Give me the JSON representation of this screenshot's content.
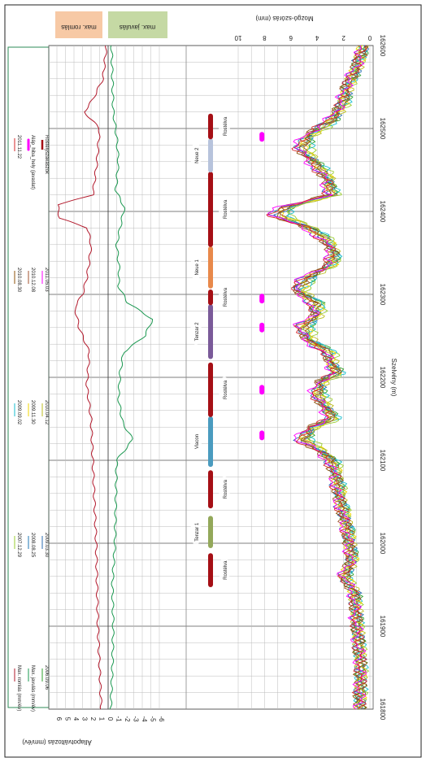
{
  "chart_data": {
    "type": "line",
    "orientation": "rotated-90-clockwise",
    "x_axis": {
      "label": "Szelvény (m)",
      "range": [
        161800,
        162600
      ],
      "ticks": [
        161800,
        161900,
        162000,
        162100,
        162200,
        162300,
        162400,
        162500,
        162600
      ]
    },
    "right_axis": {
      "label": "Mozgó-szórás (mm)",
      "range": [
        0,
        10
      ],
      "ticks": [
        0,
        2,
        4,
        6,
        8,
        10
      ]
    },
    "left_axis": {
      "label": "Állapotváltozás (mm/év)",
      "range": [
        -6,
        6
      ],
      "ticks": [
        6,
        5,
        4,
        3,
        2,
        1,
        0,
        -1,
        -2,
        -3,
        -4,
        -5,
        -6
      ]
    },
    "header_labels": {
      "max_romlas": "max. romlás",
      "max_javulas": "max. javulás"
    },
    "legend": [
      {
        "label": "Max. romlás (mm/év)",
        "color": "#b2182b"
      },
      {
        "label": "Max. javulás (mm/év)",
        "color": "#1a9850"
      },
      {
        "label": "2006.09.06",
        "color": "#2ca02c"
      },
      {
        "label": "2007.12.29",
        "color": "#9acd32"
      },
      {
        "label": "2008.08.25",
        "color": "#1f77b4"
      },
      {
        "label": "2009.03.30",
        "color": "#2b6cb0"
      },
      {
        "label": "2009.09.02",
        "color": "#17becf"
      },
      {
        "label": "2009.11.30",
        "color": "#f2d600"
      },
      {
        "label": "2010.04.12",
        "color": "#bcbd22"
      },
      {
        "label": "2010.08.30",
        "color": "#8c510a"
      },
      {
        "label": "2010.12.08",
        "color": "#a0522d"
      },
      {
        "label": "2011.05.03",
        "color": "#ff00ff"
      },
      {
        "label": "2011.11.22",
        "color": "#d62728"
      },
      {
        "label": "Aláp_hiba_hely (javaslat)",
        "color": "#ff00ff"
      },
      {
        "label": "Rostélyszakaszok",
        "color": "#a50f15"
      }
    ],
    "segments": [
      {
        "label": "Rostélva",
        "from": 161985,
        "to": 161950,
        "color": "#a50f15"
      },
      {
        "label": "Tenzar 1",
        "from": 162030,
        "to": 161997,
        "color": "#93a85a"
      },
      {
        "label": "Rostélva",
        "from": 162085,
        "to": 162045,
        "color": "#a50f15"
      },
      {
        "label": "Viacon",
        "from": 162150,
        "to": 162095,
        "color": "#4a9bbf"
      },
      {
        "label": "Rostélva",
        "from": 162215,
        "to": 162155,
        "color": "#a50f15"
      },
      {
        "label": "Tenzar 2",
        "from": 162285,
        "to": 162225,
        "color": "#7a5a99"
      },
      {
        "label": "Rostélva",
        "from": 162303,
        "to": 162290,
        "color": "#a50f15"
      },
      {
        "label": "Neue 1",
        "from": 162355,
        "to": 162310,
        "color": "#e8894b"
      },
      {
        "label": "Rostélva",
        "from": 162445,
        "to": 162360,
        "color": "#a50f15"
      },
      {
        "label": "Neue 2",
        "from": 162485,
        "to": 162450,
        "color": "#b7c3dc"
      },
      {
        "label": "Rostélva",
        "from": 162515,
        "to": 162490,
        "color": "#a50f15"
      }
    ],
    "fault_markers": [
      {
        "x": 162130,
        "y": 8.2
      },
      {
        "x": 162185,
        "y": 8.2
      },
      {
        "x": 162260,
        "y": 8.2
      },
      {
        "x": 162295,
        "y": 8.2
      },
      {
        "x": 162490,
        "y": 8.2
      }
    ],
    "series": [
      {
        "name": "2006.09.06",
        "color": "#2ca02c",
        "scale": 0.92
      },
      {
        "name": "2007.12.29",
        "color": "#9acd32",
        "scale": 0.88
      },
      {
        "name": "2008.08.25",
        "color": "#1f77b4",
        "scale": 1.02
      },
      {
        "name": "2009.03.30",
        "color": "#2b6cb0",
        "scale": 0.97
      },
      {
        "name": "2009.09.02",
        "color": "#17becf",
        "scale": 0.9
      },
      {
        "name": "2009.11.30",
        "color": "#f2d600",
        "scale": 0.95
      },
      {
        "name": "2010.04.12",
        "color": "#bcbd22",
        "scale": 0.93
      },
      {
        "name": "2010.08.30",
        "color": "#8c510a",
        "scale": 1.0
      },
      {
        "name": "2010.12.08",
        "color": "#a0522d",
        "scale": 0.99
      },
      {
        "name": "2011.05.03",
        "color": "#ff00ff",
        "scale": 1.05
      },
      {
        "name": "2011.11.22",
        "color": "#d62728",
        "scale": 1.03
      }
    ],
    "profile": [
      [
        161800,
        0.8
      ],
      [
        161850,
        0.7
      ],
      [
        161900,
        1.0
      ],
      [
        161940,
        1.2
      ],
      [
        161960,
        2.0
      ],
      [
        161980,
        1.4
      ],
      [
        162000,
        1.6
      ],
      [
        162020,
        1.8
      ],
      [
        162050,
        2.3
      ],
      [
        162080,
        2.6
      ],
      [
        162100,
        3.0
      ],
      [
        162115,
        4.2
      ],
      [
        162125,
        5.3
      ],
      [
        162140,
        4.5
      ],
      [
        162150,
        2.9
      ],
      [
        162165,
        3.5
      ],
      [
        162180,
        4.1
      ],
      [
        162195,
        3.8
      ],
      [
        162205,
        2.5
      ],
      [
        162215,
        3.0
      ],
      [
        162230,
        3.2
      ],
      [
        162245,
        4.8
      ],
      [
        162262,
        5.2
      ],
      [
        162275,
        4.1
      ],
      [
        162290,
        4.3
      ],
      [
        162305,
        5.6
      ],
      [
        162320,
        4.9
      ],
      [
        162335,
        3.1
      ],
      [
        162350,
        2.8
      ],
      [
        162365,
        3.4
      ],
      [
        162380,
        4.7
      ],
      [
        162395,
        7.2
      ],
      [
        162405,
        6.6
      ],
      [
        162420,
        3.0
      ],
      [
        162440,
        3.3
      ],
      [
        162460,
        4.4
      ],
      [
        162475,
        5.3
      ],
      [
        162490,
        4.9
      ],
      [
        162510,
        3.0
      ],
      [
        162530,
        2.1
      ],
      [
        162550,
        1.8
      ],
      [
        162575,
        1.0
      ],
      [
        162600,
        0.5
      ]
    ],
    "max_romlas": [
      [
        161800,
        0.8
      ],
      [
        161850,
        1.0
      ],
      [
        161900,
        1.2
      ],
      [
        161950,
        1.3
      ],
      [
        162000,
        1.4
      ],
      [
        162050,
        1.6
      ],
      [
        162100,
        1.8
      ],
      [
        162150,
        2.0
      ],
      [
        162190,
        2.5
      ],
      [
        162230,
        2.2
      ],
      [
        162260,
        3.4
      ],
      [
        162285,
        3.9
      ],
      [
        162300,
        3.0
      ],
      [
        162320,
        2.5
      ],
      [
        162340,
        2.2
      ],
      [
        162360,
        2.0
      ],
      [
        162380,
        2.4
      ],
      [
        162392,
        5.7
      ],
      [
        162408,
        5.9
      ],
      [
        162420,
        1.8
      ],
      [
        162460,
        1.3
      ],
      [
        162500,
        1.0
      ],
      [
        162520,
        2.8
      ],
      [
        162535,
        1.8
      ],
      [
        162560,
        0.6
      ],
      [
        162600,
        0.2
      ]
    ],
    "max_javulas": [
      [
        161800,
        -0.3
      ],
      [
        161850,
        -0.5
      ],
      [
        161900,
        -0.6
      ],
      [
        161950,
        -0.5
      ],
      [
        162000,
        -0.8
      ],
      [
        162050,
        -0.9
      ],
      [
        162100,
        -1.0
      ],
      [
        162125,
        -2.9
      ],
      [
        162145,
        -1.7
      ],
      [
        162175,
        -1.2
      ],
      [
        162205,
        -1.4
      ],
      [
        162230,
        -1.8
      ],
      [
        162250,
        -4.3
      ],
      [
        162270,
        -5.2
      ],
      [
        162290,
        -2.3
      ],
      [
        162310,
        -1.2
      ],
      [
        162330,
        -1.3
      ],
      [
        162360,
        -1.0
      ],
      [
        162390,
        -1.6
      ],
      [
        162405,
        -1.9
      ],
      [
        162425,
        -0.9
      ],
      [
        162460,
        -1.2
      ],
      [
        162490,
        -1.0
      ],
      [
        162520,
        -0.6
      ],
      [
        162560,
        -0.5
      ],
      [
        162600,
        -0.4
      ]
    ]
  }
}
